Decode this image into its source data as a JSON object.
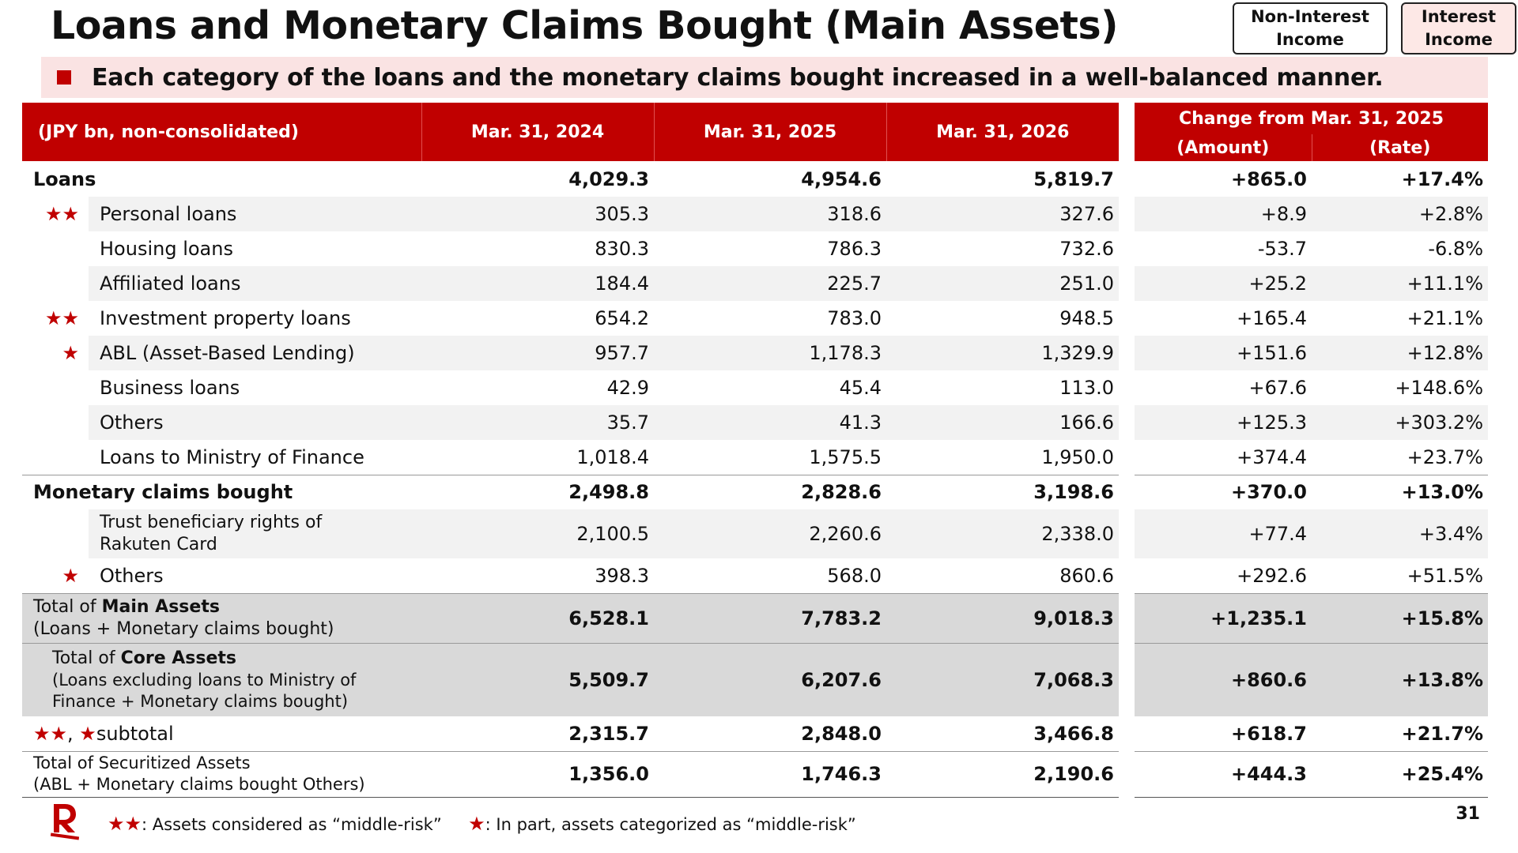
{
  "title": "Loans and Monetary Claims Bought (Main Assets)",
  "tags": {
    "non_interest": "Non-Interest\nIncome",
    "interest": "Interest\nIncome"
  },
  "banner": "Each category of the loans and the monetary claims bought increased in a well-balanced manner.",
  "header": {
    "unit": "(JPY bn, non-consolidated)",
    "col1": "Mar. 31, 2024",
    "col2": "Mar. 31, 2025",
    "col3": "Mar. 31, 2026",
    "change": "Change from Mar. 31, 2025",
    "amount": "(Amount)",
    "rate": "(Rate)"
  },
  "rows": [
    {
      "star": "",
      "label": "Loans",
      "v": [
        "4,029.3",
        "4,954.6",
        "5,819.7",
        "+865.0",
        "+17.4%"
      ]
    },
    {
      "star": "★★",
      "label": "Personal loans",
      "v": [
        "305.3",
        "318.6",
        "327.6",
        "+8.9",
        "+2.8%"
      ]
    },
    {
      "star": "",
      "label": "Housing loans",
      "v": [
        "830.3",
        "786.3",
        "732.6",
        "-53.7",
        "-6.8%"
      ]
    },
    {
      "star": "",
      "label": "Affiliated loans",
      "v": [
        "184.4",
        "225.7",
        "251.0",
        "+25.2",
        "+11.1%"
      ]
    },
    {
      "star": "★★",
      "label": "Investment property loans",
      "v": [
        "654.2",
        "783.0",
        "948.5",
        "+165.4",
        "+21.1%"
      ]
    },
    {
      "star": "★",
      "label": "ABL (Asset-Based Lending)",
      "v": [
        "957.7",
        "1,178.3",
        "1,329.9",
        "+151.6",
        "+12.8%"
      ]
    },
    {
      "star": "",
      "label": "Business loans",
      "v": [
        "42.9",
        "45.4",
        "113.0",
        "+67.6",
        "+148.6%"
      ]
    },
    {
      "star": "",
      "label": "Others",
      "v": [
        "35.7",
        "41.3",
        "166.6",
        "+125.3",
        "+303.2%"
      ]
    },
    {
      "star": "",
      "label": "Loans to Ministry of Finance",
      "v": [
        "1,018.4",
        "1,575.5",
        "1,950.0",
        "+374.4",
        "+23.7%"
      ]
    },
    {
      "star": "",
      "label": "Monetary claims bought",
      "v": [
        "2,498.8",
        "2,828.6",
        "3,198.6",
        "+370.0",
        "+13.0%"
      ]
    },
    {
      "star": "",
      "label_a": "Trust beneficiary rights of",
      "label_b": "Rakuten Card",
      "v": [
        "2,100.5",
        "2,260.6",
        "2,338.0",
        "+77.4",
        "+3.4%"
      ]
    },
    {
      "star": "★",
      "label": "Others",
      "v": [
        "398.3",
        "568.0",
        "860.6",
        "+292.6",
        "+51.5%"
      ]
    },
    {
      "pre": "Total of ",
      "strong": "Main Assets",
      "sub": "(Loans + Monetary claims bought)",
      "v": [
        "6,528.1",
        "7,783.2",
        "9,018.3",
        "+1,235.1",
        "+15.8%"
      ]
    },
    {
      "pre": "Total of ",
      "strong": "Core Assets",
      "sub_a": "(Loans excluding loans to Ministry of",
      "sub_b": "Finance + Monetary claims bought)",
      "v": [
        "5,509.7",
        "6,207.6",
        "7,068.3",
        "+860.6",
        "+13.8%"
      ]
    },
    {
      "stars": "★★",
      "comma": ", ",
      "star1": "★",
      "label": "subtotal",
      "v": [
        "2,315.7",
        "2,848.0",
        "3,466.8",
        "+618.7",
        "+21.7%"
      ]
    },
    {
      "label_a": "Total of Securitized Assets",
      "label_b": "(ABL + Monetary claims bought Others)",
      "v": [
        "1,356.0",
        "1,746.3",
        "2,190.6",
        "+444.3",
        "+25.4%"
      ]
    }
  ],
  "footnote": {
    "s2": "★★",
    "t2": ":  Assets considered as “middle-risk”",
    "s1": "★",
    "t1": ":  In part, assets categorized as “middle-risk”"
  },
  "page_number": "31",
  "colors": {
    "brand_red": "#c00000",
    "banner_bg": "#fae3e3",
    "zebra": "#f2f2f2",
    "total_bg": "#d9d9d9"
  }
}
